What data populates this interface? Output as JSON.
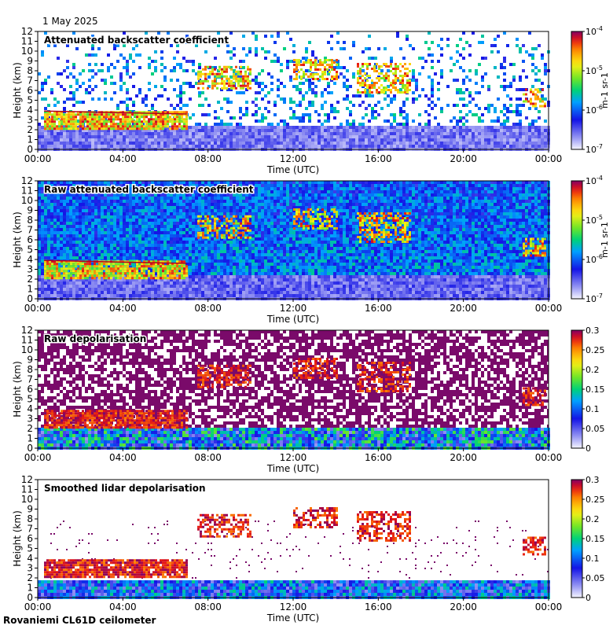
{
  "date": "1 May 2025",
  "footer": "Rovaniemi CL61D ceilometer",
  "chart_data": [
    {
      "type": "heatmap",
      "title": "Attenuated backscatter coefficient",
      "xlabel": "Time (UTC)",
      "ylabel": "Height (km)",
      "xticks": [
        "00:00",
        "04:00",
        "08:00",
        "12:00",
        "16:00",
        "20:00",
        "00:00"
      ],
      "yticks": [
        "0",
        "1",
        "2",
        "3",
        "4",
        "5",
        "6",
        "7",
        "8",
        "9",
        "10",
        "11",
        "12"
      ],
      "ylim": [
        0,
        12
      ],
      "colorbar": {
        "scale": "log",
        "ticks": [
          "10-7",
          "10-6",
          "10-5",
          "10-4"
        ],
        "label": "m-1 sr-1"
      }
    },
    {
      "type": "heatmap",
      "title": "Raw attenuated backscatter coefficient",
      "xlabel": "Time (UTC)",
      "ylabel": "Height (km)",
      "xticks": [
        "00:00",
        "04:00",
        "08:00",
        "12:00",
        "16:00",
        "20:00",
        "00:00"
      ],
      "yticks": [
        "0",
        "1",
        "2",
        "3",
        "4",
        "5",
        "6",
        "7",
        "8",
        "9",
        "10",
        "11",
        "12"
      ],
      "ylim": [
        0,
        12
      ],
      "colorbar": {
        "scale": "log",
        "ticks": [
          "10-7",
          "10-6",
          "10-5",
          "10-4"
        ],
        "label": "m-1 sr-1"
      }
    },
    {
      "type": "heatmap",
      "title": "Raw depolarisation",
      "xlabel": "Time (UTC)",
      "ylabel": "Height (km)",
      "xticks": [
        "00:00",
        "04:00",
        "08:00",
        "12:00",
        "16:00",
        "20:00",
        "00:00"
      ],
      "yticks": [
        "0",
        "1",
        "2",
        "3",
        "4",
        "5",
        "6",
        "7",
        "8",
        "9",
        "10",
        "11",
        "12"
      ],
      "ylim": [
        0,
        12
      ],
      "colorbar": {
        "scale": "linear",
        "ticks": [
          "0",
          "0.05",
          "0.1",
          "0.15",
          "0.2",
          "0.25",
          "0.3"
        ],
        "label": ""
      }
    },
    {
      "type": "heatmap",
      "title": "Smoothed lidar depolarisation",
      "xlabel": "Time (UTC)",
      "ylabel": "Height (km)",
      "xticks": [
        "00:00",
        "04:00",
        "08:00",
        "12:00",
        "16:00",
        "20:00",
        "00:00"
      ],
      "yticks": [
        "0",
        "1",
        "2",
        "3",
        "4",
        "5",
        "6",
        "7",
        "8",
        "9",
        "10",
        "11",
        "12"
      ],
      "ylim": [
        0,
        12
      ],
      "colorbar": {
        "scale": "linear",
        "ticks": [
          "0",
          "0.05",
          "0.1",
          "0.15",
          "0.2",
          "0.25",
          "0.3"
        ],
        "label": ""
      }
    }
  ]
}
